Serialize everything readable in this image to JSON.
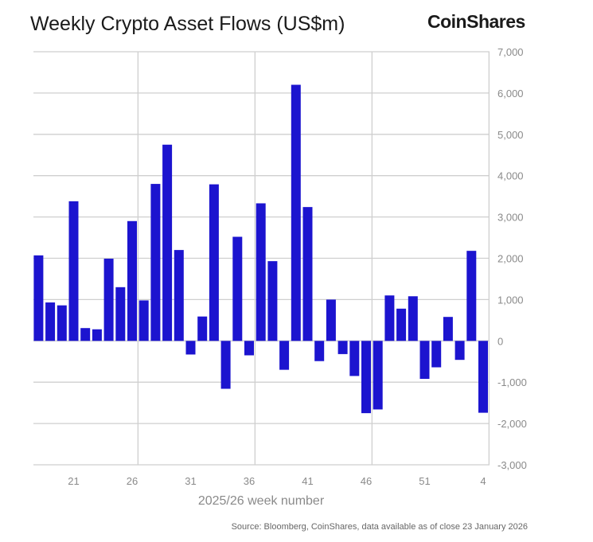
{
  "chart_data": {
    "type": "bar",
    "title": "Weekly Crypto Asset Flows (US$m)",
    "xlabel": "2025/26 week number",
    "ylabel": "",
    "ylim": [
      -3000,
      7000
    ],
    "yticks": [
      "7,000",
      "6,000",
      "5,000",
      "4,000",
      "3,000",
      "2,000",
      "1,000",
      "0",
      "-1,000",
      "-2,000",
      "-3,000"
    ],
    "ytick_values": [
      7000,
      6000,
      5000,
      4000,
      3000,
      2000,
      1000,
      0,
      -1000,
      -2000,
      -3000
    ],
    "y_axis_side": "right",
    "grid": true,
    "categories": [
      "18",
      "19",
      "20",
      "21",
      "22",
      "23",
      "24",
      "25",
      "26",
      "27",
      "28",
      "29",
      "30",
      "31",
      "32",
      "33",
      "34",
      "35",
      "36",
      "37",
      "38",
      "39",
      "40",
      "41",
      "42",
      "43",
      "44",
      "45",
      "46",
      "47",
      "48",
      "49",
      "50",
      "51",
      "52",
      "1",
      "2",
      "3",
      "4"
    ],
    "xtick_labels": [
      "21",
      "26",
      "31",
      "36",
      "41",
      "46",
      "51",
      "4"
    ],
    "values": [
      2070,
      930,
      860,
      3380,
      310,
      280,
      1990,
      1300,
      2900,
      980,
      3800,
      4750,
      2200,
      -330,
      590,
      3790,
      -1160,
      2520,
      -350,
      3330,
      1930,
      -700,
      6200,
      3240,
      -490,
      1000,
      -320,
      -850,
      -1750,
      -1660,
      1100,
      780,
      1080,
      -920,
      -640,
      580,
      -460,
      2180,
      -1740
    ],
    "bar_color": "#1c14cf"
  },
  "brand": "CoinShares",
  "source": "Source: Bloomberg, CoinShares, data available as of close 23 January 2026"
}
